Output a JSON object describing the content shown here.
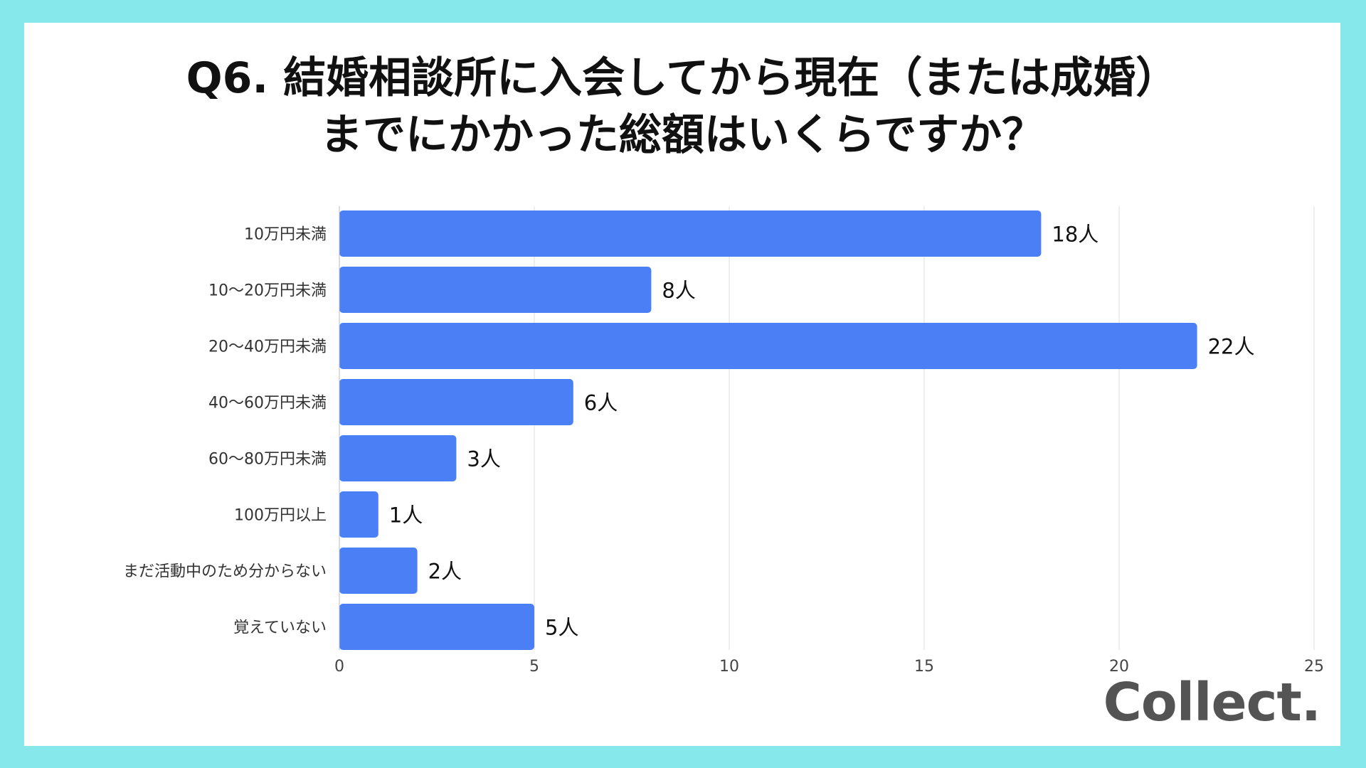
{
  "title_lines": [
    "Q6. 結婚相談所に入会してから現在（または成婚）",
    "までにかかった総額はいくらですか？"
  ],
  "brand": "Collect.",
  "colors": {
    "background": "#87e8ec",
    "bar": "#4a7ff5",
    "grid": "#dddddd",
    "brand": "#545454"
  },
  "chart_data": {
    "type": "bar",
    "orientation": "horizontal",
    "categories": [
      "10万円未満",
      "10～20万円未満",
      "20～40万円未満",
      "40～60万円未満",
      "60～80万円未満",
      "100万円以上",
      "まだ活動中のため分からない",
      "覚えていない"
    ],
    "values": [
      18,
      8,
      22,
      6,
      3,
      1,
      2,
      5
    ],
    "data_labels": [
      "18人",
      "8人",
      "22人",
      "6人",
      "3人",
      "1人",
      "2人",
      "5人"
    ],
    "xlim": [
      0,
      25
    ],
    "xticks": [
      0,
      5,
      10,
      15,
      20,
      25
    ],
    "grid": true,
    "legend": "none"
  }
}
